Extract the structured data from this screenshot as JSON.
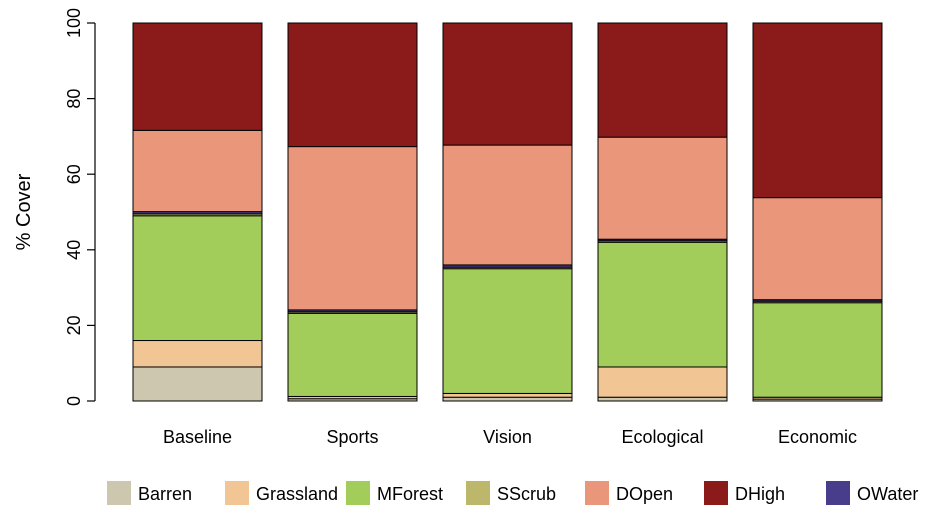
{
  "chart_data": {
    "type": "bar",
    "stacked": true,
    "categories": [
      "Baseline",
      "Sports",
      "Vision",
      "Ecological",
      "Economic"
    ],
    "ylabel": "% Cover",
    "xlabel": "",
    "title": "",
    "ylim": [
      0,
      100
    ],
    "yticks": [
      "0",
      "20",
      "40",
      "60",
      "80",
      "100"
    ],
    "ytick_values": [
      0,
      20,
      40,
      60,
      80,
      100
    ],
    "grid": false,
    "legend_position": "bottom",
    "series": [
      {
        "name": "Barren",
        "color": "#cdc7b0",
        "values": [
          9,
          0.6,
          1.0,
          1.0,
          0.5
        ]
      },
      {
        "name": "Grassland",
        "color": "#f1c594",
        "values": [
          7,
          0.6,
          1.0,
          8.0,
          0.5
        ]
      },
      {
        "name": "MForest",
        "color": "#a2cd5a",
        "values": [
          33,
          22,
          33,
          33,
          25
        ]
      },
      {
        "name": "SScrub",
        "color": "#bdb76b",
        "values": [
          0.5,
          0.4,
          0.4,
          0.4,
          0.4
        ]
      },
      {
        "name": "OWater",
        "color": "#483d8b",
        "values": [
          0.6,
          0.5,
          0.6,
          0.4,
          0.4
        ]
      },
      {
        "name": "DOpen",
        "color": "#ea967b",
        "values": [
          21.5,
          43.2,
          31.7,
          27,
          27
        ]
      },
      {
        "name": "DHigh",
        "color": "#8b1a1a",
        "values": [
          28.4,
          32.7,
          32.3,
          30.2,
          46.2
        ]
      }
    ],
    "legend_order": [
      "Barren",
      "Grassland",
      "MForest",
      "SScrub",
      "DOpen",
      "DHigh",
      "OWater"
    ]
  }
}
